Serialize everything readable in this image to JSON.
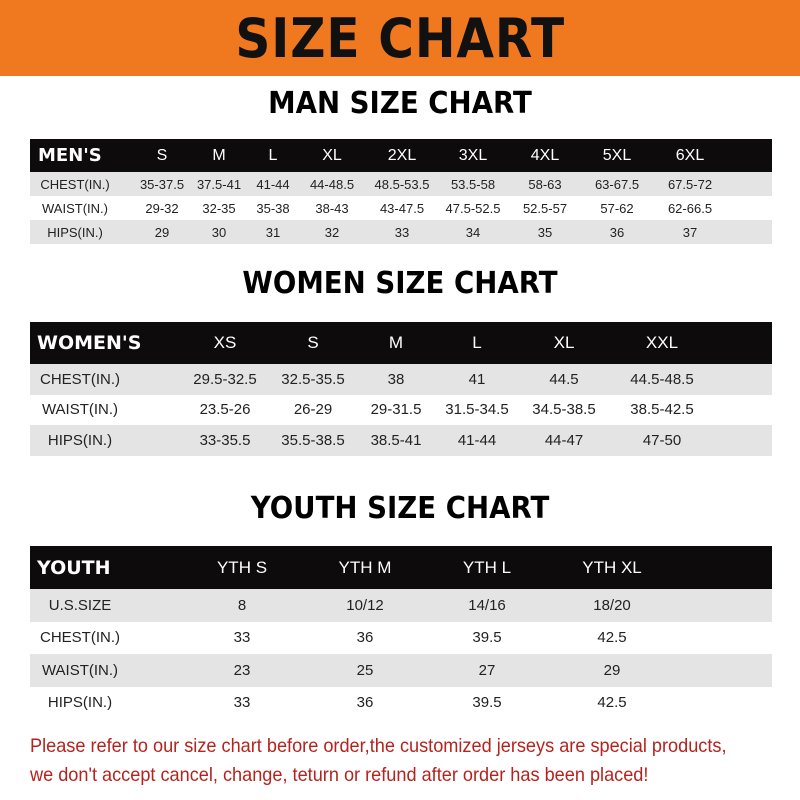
{
  "banner_title": "SIZE CHART",
  "men": {
    "title": "MAN SIZE CHART",
    "header": [
      "MEN'S",
      "S",
      "M",
      "L",
      "XL",
      "2XL",
      "3XL",
      "4XL",
      "5XL",
      "6XL"
    ],
    "rows": [
      [
        "CHEST(IN.)",
        "35-37.5",
        "37.5-41",
        "41-44",
        "44-48.5",
        "48.5-53.5",
        "53.5-58",
        "58-63",
        "63-67.5",
        "67.5-72"
      ],
      [
        "WAIST(IN.)",
        "29-32",
        "32-35",
        "35-38",
        "38-43",
        "43-47.5",
        "47.5-52.5",
        "52.5-57",
        "57-62",
        "62-66.5"
      ],
      [
        "HIPS(IN.)",
        "29",
        "30",
        "31",
        "32",
        "33",
        "34",
        "35",
        "36",
        "37"
      ]
    ]
  },
  "women": {
    "title": "WOMEN SIZE CHART",
    "header": [
      "WOMEN'S",
      "XS",
      "S",
      "M",
      "L",
      "XL",
      "XXL"
    ],
    "rows": [
      [
        "CHEST(IN.)",
        "29.5-32.5",
        "32.5-35.5",
        "38",
        "41",
        "44.5",
        "44.5-48.5"
      ],
      [
        "WAIST(IN.)",
        "23.5-26",
        "26-29",
        "29-31.5",
        "31.5-34.5",
        "34.5-38.5",
        "38.5-42.5"
      ],
      [
        "HIPS(IN.)",
        "33-35.5",
        "35.5-38.5",
        "38.5-41",
        "41-44",
        "44-47",
        "47-50"
      ]
    ]
  },
  "youth": {
    "title": "YOUTH SIZE CHART",
    "header": [
      "YOUTH",
      "YTH S",
      "YTH M",
      "YTH L",
      "YTH XL"
    ],
    "rows": [
      [
        "U.S.SIZE",
        "8",
        "10/12",
        "14/16",
        "18/20"
      ],
      [
        "CHEST(IN.)",
        "33",
        "36",
        "39.5",
        "42.5"
      ],
      [
        "WAIST(IN.)",
        "23",
        "25",
        "27",
        "29"
      ],
      [
        "HIPS(IN.)",
        "33",
        "36",
        "39.5",
        "42.5"
      ]
    ]
  },
  "note": {
    "line1": "Please refer to our size chart before order,the customized jerseys are special products,",
    "line2": "we don't accept cancel, change, teturn or refund after order has been placed!"
  },
  "colors": {
    "banner": "#f0781e",
    "header_row": "#0d0b0b",
    "stripe": "#e4e4e4",
    "note": "#b5231f"
  }
}
